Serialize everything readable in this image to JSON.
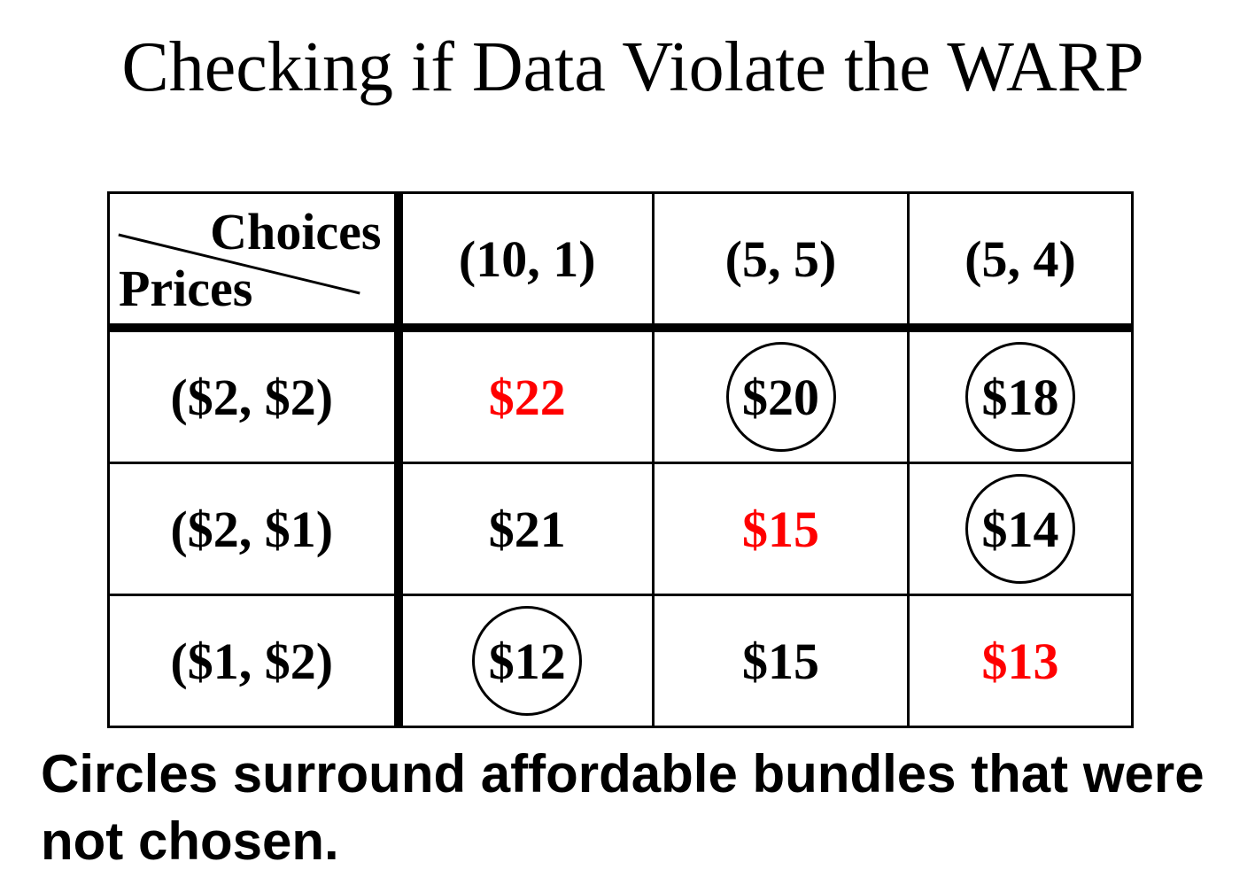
{
  "title": "Checking if Data Violate the WARP",
  "table": {
    "corner": {
      "columns_label": "Choices",
      "rows_label": "Prices"
    },
    "columns": [
      "(10, 1)",
      "(5, 5)",
      "(5, 4)"
    ],
    "rows": [
      {
        "label": "($2, $2)",
        "cells": [
          {
            "text": "$22",
            "red": true,
            "circled": false
          },
          {
            "text": "$20",
            "red": false,
            "circled": true
          },
          {
            "text": "$18",
            "red": false,
            "circled": true
          }
        ]
      },
      {
        "label": "($2, $1)",
        "cells": [
          {
            "text": "$21",
            "red": false,
            "circled": false
          },
          {
            "text": "$15",
            "red": true,
            "circled": false
          },
          {
            "text": "$14",
            "red": false,
            "circled": true
          }
        ]
      },
      {
        "label": "($1, $2)",
        "cells": [
          {
            "text": "$12",
            "red": false,
            "circled": true
          },
          {
            "text": "$15",
            "red": false,
            "circled": false
          },
          {
            "text": "$13",
            "red": true,
            "circled": false
          }
        ]
      }
    ]
  },
  "caption": "Circles surround affordable bundles that were not chosen.",
  "colors": {
    "highlight": "#ff0000",
    "text": "#000000",
    "background": "#ffffff"
  }
}
